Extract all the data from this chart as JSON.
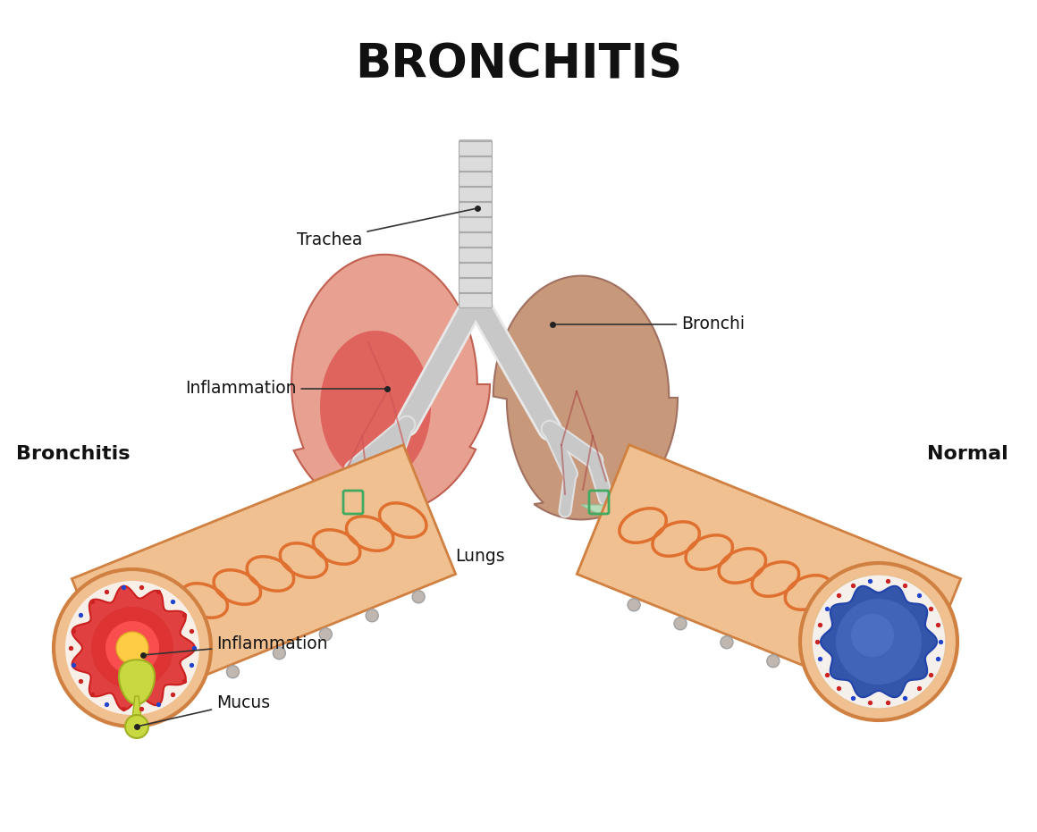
{
  "title": "BRONCHITIS",
  "title_fontsize": 38,
  "title_fontweight": "bold",
  "bg_color": "#ffffff",
  "labels": {
    "trachea": "Trachea",
    "bronchi": "Bronchi",
    "inflammation_top": "Inflammation",
    "lungs": "Lungs",
    "bronchitis": "Bronchitis",
    "normal": "Normal",
    "inflammation_bottom": "Inflammation",
    "mucus": "Mucus"
  },
  "colors": {
    "lung_left": "#e8a090",
    "lung_left_inflamed": "#dd4444",
    "lung_right": "#c8987a",
    "lung_outline_left": "#c06050",
    "lung_outline_right": "#a07060",
    "trachea_fill": "#dcdcdc",
    "trachea_outline": "#aaaaaa",
    "bronchi_fill": "#e0e0e0",
    "bronchi_dark": "#c8c8c8",
    "vessel_left": "#cc5555",
    "vessel_right": "#aa4444",
    "green_connector": "#b8e8c0",
    "green_connector_edge": "#90c8a0",
    "green_marker": "#40aa60",
    "tube_fill": "#f0c090",
    "tube_edge": "#d08040",
    "tube_ring": "#e07030",
    "cross_outer_fill": "#f0c090",
    "cross_outer_edge": "#d08040",
    "cross_inner_bg": "#f8f0e8",
    "bronchitis_wave": "#e04040",
    "bronchitis_wave_edge": "#cc2020",
    "bronchitis_inner": "#dd3333",
    "bronchitis_bright": "#ff5555",
    "airway_fill": "#ffcc44",
    "airway_edge": "#ddaa22",
    "mucus_fill": "#c8d840",
    "mucus_edge": "#a0b020",
    "normal_outer_bg": "#f5f0ec",
    "normal_outer_edge": "#e8c090",
    "normal_airway": "#3355aa",
    "normal_airway_edge": "#2244aa",
    "normal_inner": "#4466bb",
    "normal_bright": "#5577cc",
    "dot_blue": "#2244cc",
    "dot_red": "#cc2222",
    "label_color": "#111111",
    "annotation_line": "#333333",
    "dot_color": "#222222"
  }
}
